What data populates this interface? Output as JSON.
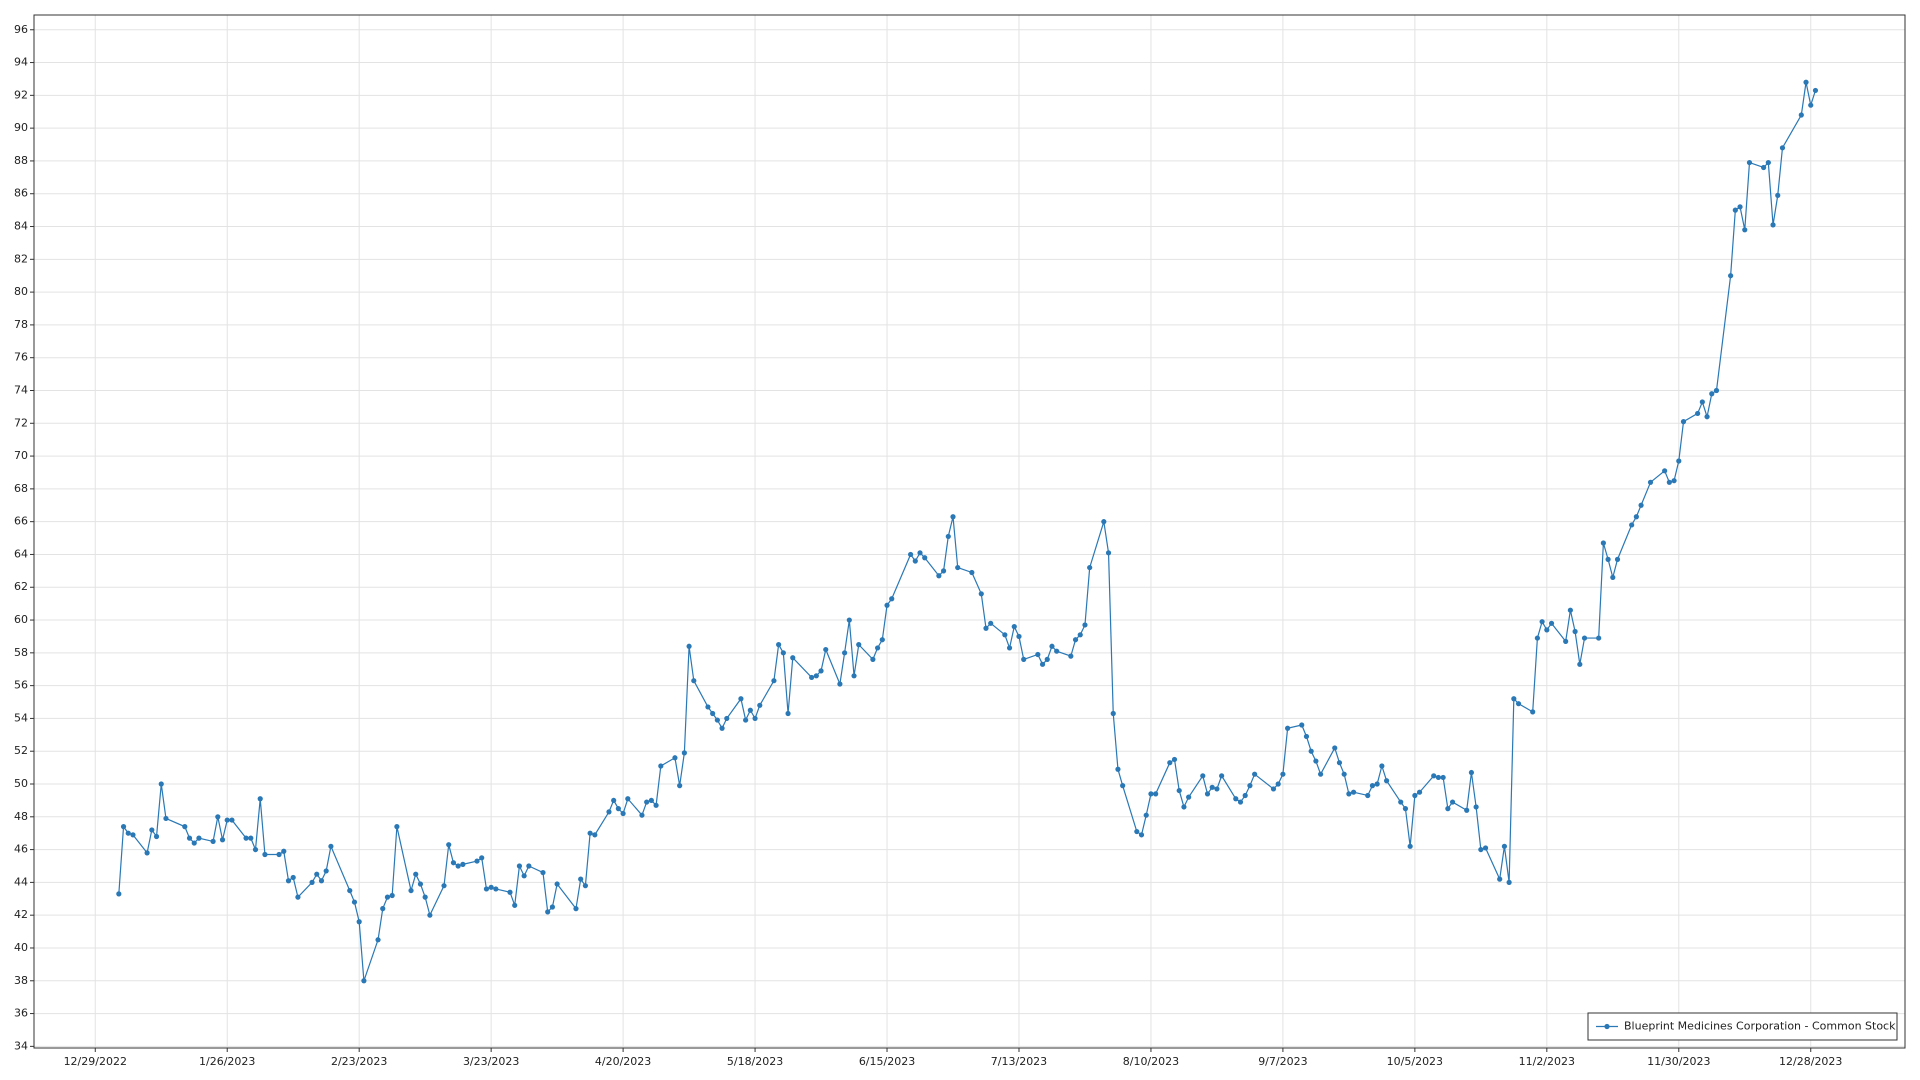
{
  "chart_data": {
    "type": "line",
    "x": [
      "1/3/2023",
      "1/4/2023",
      "1/5/2023",
      "1/6/2023",
      "1/9/2023",
      "1/10/2023",
      "1/11/2023",
      "1/12/2023",
      "1/13/2023",
      "1/17/2023",
      "1/18/2023",
      "1/19/2023",
      "1/20/2023",
      "1/23/2023",
      "1/24/2023",
      "1/25/2023",
      "1/26/2023",
      "1/27/2023",
      "1/30/2023",
      "1/31/2023",
      "2/1/2023",
      "2/2/2023",
      "2/3/2023",
      "2/6/2023",
      "2/7/2023",
      "2/8/2023",
      "2/9/2023",
      "2/10/2023",
      "2/13/2023",
      "2/14/2023",
      "2/15/2023",
      "2/16/2023",
      "2/17/2023",
      "2/21/2023",
      "2/22/2023",
      "2/23/2023",
      "2/24/2023",
      "2/27/2023",
      "2/28/2023",
      "3/1/2023",
      "3/2/2023",
      "3/3/2023",
      "3/6/2023",
      "3/7/2023",
      "3/8/2023",
      "3/9/2023",
      "3/10/2023",
      "3/13/2023",
      "3/14/2023",
      "3/15/2023",
      "3/16/2023",
      "3/17/2023",
      "3/20/2023",
      "3/21/2023",
      "3/22/2023",
      "3/23/2023",
      "3/24/2023",
      "3/27/2023",
      "3/28/2023",
      "3/29/2023",
      "3/30/2023",
      "3/31/2023",
      "4/3/2023",
      "4/4/2023",
      "4/5/2023",
      "4/6/2023",
      "4/10/2023",
      "4/11/2023",
      "4/12/2023",
      "4/13/2023",
      "4/14/2023",
      "4/17/2023",
      "4/18/2023",
      "4/19/2023",
      "4/20/2023",
      "4/21/2023",
      "4/24/2023",
      "4/25/2023",
      "4/26/2023",
      "4/27/2023",
      "4/28/2023",
      "5/1/2023",
      "5/2/2023",
      "5/3/2023",
      "5/4/2023",
      "5/5/2023",
      "5/8/2023",
      "5/9/2023",
      "5/10/2023",
      "5/11/2023",
      "5/12/2023",
      "5/15/2023",
      "5/16/2023",
      "5/17/2023",
      "5/18/2023",
      "5/19/2023",
      "5/22/2023",
      "5/23/2023",
      "5/24/2023",
      "5/25/2023",
      "5/26/2023",
      "5/30/2023",
      "5/31/2023",
      "6/1/2023",
      "6/2/2023",
      "6/5/2023",
      "6/6/2023",
      "6/7/2023",
      "6/8/2023",
      "6/9/2023",
      "6/12/2023",
      "6/13/2023",
      "6/14/2023",
      "6/15/2023",
      "6/16/2023",
      "6/20/2023",
      "6/21/2023",
      "6/22/2023",
      "6/23/2023",
      "6/26/2023",
      "6/27/2023",
      "6/28/2023",
      "6/29/2023",
      "6/30/2023",
      "7/3/2023",
      "7/5/2023",
      "7/6/2023",
      "7/7/2023",
      "7/10/2023",
      "7/11/2023",
      "7/12/2023",
      "7/13/2023",
      "7/14/2023",
      "7/17/2023",
      "7/18/2023",
      "7/19/2023",
      "7/20/2023",
      "7/21/2023",
      "7/24/2023",
      "7/25/2023",
      "7/26/2023",
      "7/27/2023",
      "7/28/2023",
      "7/31/2023",
      "8/1/2023",
      "8/2/2023",
      "8/3/2023",
      "8/4/2023",
      "8/7/2023",
      "8/8/2023",
      "8/9/2023",
      "8/10/2023",
      "8/11/2023",
      "8/14/2023",
      "8/15/2023",
      "8/16/2023",
      "8/17/2023",
      "8/18/2023",
      "8/21/2023",
      "8/22/2023",
      "8/23/2023",
      "8/24/2023",
      "8/25/2023",
      "8/28/2023",
      "8/29/2023",
      "8/30/2023",
      "8/31/2023",
      "9/1/2023",
      "9/5/2023",
      "9/6/2023",
      "9/7/2023",
      "9/8/2023",
      "9/11/2023",
      "9/12/2023",
      "9/13/2023",
      "9/14/2023",
      "9/15/2023",
      "9/18/2023",
      "9/19/2023",
      "9/20/2023",
      "9/21/2023",
      "9/22/2023",
      "9/25/2023",
      "9/26/2023",
      "9/27/2023",
      "9/28/2023",
      "9/29/2023",
      "10/2/2023",
      "10/3/2023",
      "10/4/2023",
      "10/5/2023",
      "10/6/2023",
      "10/9/2023",
      "10/10/2023",
      "10/11/2023",
      "10/12/2023",
      "10/13/2023",
      "10/16/2023",
      "10/17/2023",
      "10/18/2023",
      "10/19/2023",
      "10/20/2023",
      "10/23/2023",
      "10/24/2023",
      "10/25/2023",
      "10/26/2023",
      "10/27/2023",
      "10/30/2023",
      "10/31/2023",
      "11/1/2023",
      "11/2/2023",
      "11/3/2023",
      "11/6/2023",
      "11/7/2023",
      "11/8/2023",
      "11/9/2023",
      "11/10/2023",
      "11/13/2023",
      "11/14/2023",
      "11/15/2023",
      "11/16/2023",
      "11/17/2023",
      "11/20/2023",
      "11/21/2023",
      "11/22/2023",
      "11/24/2023",
      "11/27/2023",
      "11/28/2023",
      "11/29/2023",
      "11/30/2023",
      "12/1/2023",
      "12/4/2023",
      "12/5/2023",
      "12/6/2023",
      "12/7/2023",
      "12/8/2023",
      "12/11/2023",
      "12/12/2023",
      "12/13/2023",
      "12/14/2023",
      "12/15/2023",
      "12/18/2023",
      "12/19/2023",
      "12/20/2023",
      "12/21/2023",
      "12/22/2023",
      "12/26/2023",
      "12/27/2023",
      "12/28/2023",
      "12/29/2023"
    ],
    "series": [
      {
        "name": "Blueprint Medicines Corporation - Common Stock",
        "color": "#2a78b5",
        "values": [
          43.3,
          47.4,
          47.0,
          46.9,
          45.8,
          47.2,
          46.8,
          50.0,
          47.9,
          47.4,
          46.7,
          46.4,
          46.7,
          46.5,
          48.0,
          46.6,
          47.8,
          47.8,
          46.7,
          46.7,
          46.0,
          49.1,
          45.7,
          45.7,
          45.9,
          44.1,
          44.3,
          43.1,
          44.0,
          44.5,
          44.1,
          44.7,
          46.2,
          43.5,
          42.8,
          41.6,
          38.0,
          40.5,
          42.4,
          43.1,
          43.2,
          47.4,
          43.5,
          44.5,
          43.9,
          43.1,
          42.0,
          43.8,
          46.3,
          45.2,
          45.0,
          45.1,
          45.3,
          45.5,
          43.6,
          43.7,
          43.6,
          43.4,
          42.6,
          45.0,
          44.4,
          45.0,
          44.6,
          42.2,
          42.5,
          43.9,
          42.4,
          44.2,
          43.8,
          47.0,
          46.9,
          48.3,
          49.0,
          48.5,
          48.2,
          49.1,
          48.1,
          48.9,
          49.0,
          48.7,
          51.1,
          51.6,
          49.9,
          51.9,
          58.4,
          56.3,
          54.7,
          54.3,
          53.9,
          53.4,
          54.0,
          55.2,
          53.9,
          54.5,
          54.0,
          54.8,
          56.3,
          58.5,
          58.0,
          54.3,
          57.7,
          56.5,
          56.6,
          56.9,
          58.2,
          56.1,
          58.0,
          60.0,
          56.6,
          58.5,
          57.6,
          58.3,
          58.8,
          60.9,
          61.3,
          64.0,
          63.6,
          64.1,
          63.8,
          62.7,
          63.0,
          65.1,
          66.3,
          63.2,
          62.9,
          61.6,
          59.5,
          59.8,
          59.1,
          58.3,
          59.6,
          59.0,
          57.6,
          57.9,
          57.3,
          57.6,
          58.4,
          58.1,
          57.8,
          58.8,
          59.1,
          59.7,
          63.2,
          66.0,
          64.1,
          54.3,
          50.9,
          49.9,
          47.1,
          46.9,
          48.1,
          49.4,
          49.4,
          51.3,
          51.5,
          49.6,
          48.6,
          49.2,
          50.5,
          49.4,
          49.8,
          49.7,
          50.5,
          49.1,
          48.9,
          49.3,
          49.9,
          50.6,
          49.7,
          50.0,
          50.6,
          53.4,
          53.6,
          52.9,
          52.0,
          51.4,
          50.6,
          52.2,
          51.3,
          50.6,
          49.4,
          49.5,
          49.3,
          49.9,
          50.0,
          51.1,
          50.2,
          48.9,
          48.5,
          46.2,
          49.3,
          49.5,
          50.5,
          50.4,
          50.4,
          48.5,
          48.9,
          48.4,
          50.7,
          48.6,
          46.0,
          46.1,
          44.2,
          46.2,
          44.0,
          55.2,
          54.9,
          54.4,
          58.9,
          59.9,
          59.4,
          59.8,
          58.7,
          60.6,
          59.3,
          57.3,
          58.9,
          58.9,
          64.7,
          63.7,
          62.6,
          63.7,
          65.8,
          66.3,
          67.0,
          68.4,
          69.1,
          68.4,
          68.5,
          69.7,
          72.1,
          72.6,
          73.3,
          72.4,
          73.8,
          74.0,
          81.0,
          85.0,
          85.2,
          83.8,
          87.9,
          87.6,
          87.9,
          84.1,
          85.9,
          88.8,
          90.8,
          92.8,
          91.4,
          92.3
        ]
      }
    ],
    "xlim": [
      "12/16/2022",
      "1/17/2024"
    ],
    "xticks": [
      "12/29/2022",
      "1/26/2023",
      "2/23/2023",
      "3/23/2023",
      "4/20/2023",
      "5/18/2023",
      "6/15/2023",
      "7/13/2023",
      "8/10/2023",
      "9/7/2023",
      "10/5/2023",
      "11/2/2023",
      "11/30/2023",
      "12/28/2023"
    ],
    "ylim": [
      33.9,
      96.9
    ],
    "yticks": [
      34,
      36,
      38,
      40,
      42,
      44,
      46,
      48,
      50,
      52,
      54,
      56,
      58,
      60,
      62,
      64,
      66,
      68,
      70,
      72,
      74,
      76,
      78,
      80,
      82,
      84,
      86,
      88,
      90,
      92,
      94,
      96
    ],
    "grid": true,
    "legend": "lower right"
  }
}
